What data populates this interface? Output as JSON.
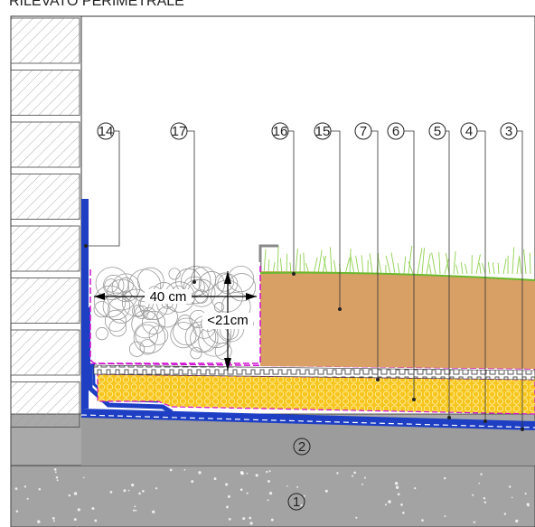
{
  "title": "RILEVATO PERIMETRALE",
  "callouts": [
    {
      "label": "14"
    },
    {
      "label": "17"
    },
    {
      "label": "16"
    },
    {
      "label": "15"
    },
    {
      "label": "7"
    },
    {
      "label": "6"
    },
    {
      "label": "5"
    },
    {
      "label": "4"
    },
    {
      "label": "3"
    }
  ],
  "layers": [
    {
      "label": "2"
    },
    {
      "label": "1"
    }
  ],
  "dimensions": {
    "width": "40 cm",
    "height": "<21cm"
  }
}
